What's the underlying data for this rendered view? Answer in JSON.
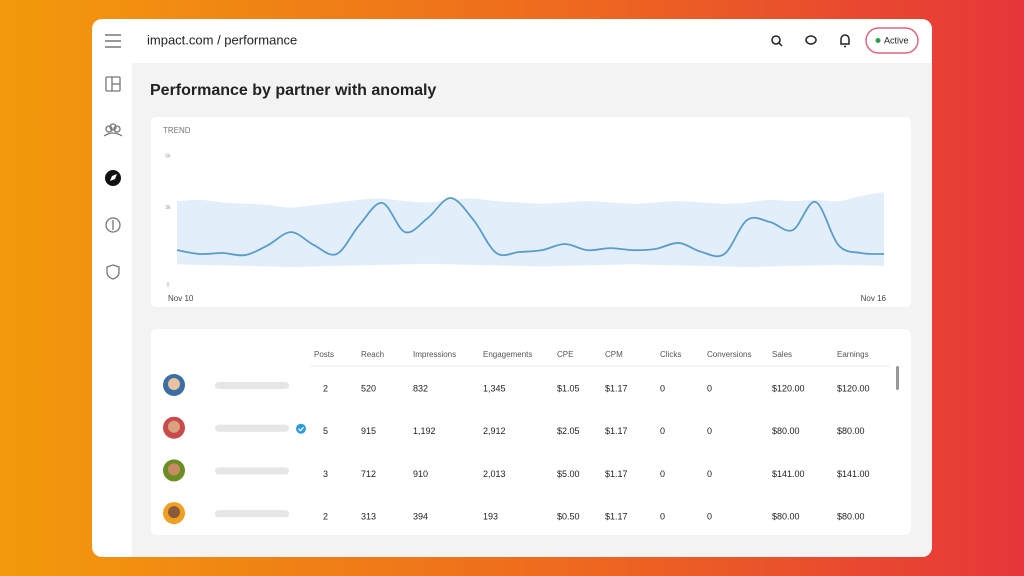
{
  "header": {
    "breadcrumb": "impact.com / performance",
    "status": "Active"
  },
  "page_title": "Performance by partner with anomaly",
  "chart_data": {
    "type": "line",
    "title": "TREND",
    "categories": [
      "Nov 10",
      null,
      null,
      null,
      null,
      null,
      null,
      null,
      null,
      null,
      null,
      null,
      null,
      null,
      null,
      null,
      null,
      null,
      null,
      null,
      null,
      null,
      null,
      null,
      null,
      null,
      null,
      null,
      null,
      null,
      null,
      "Nov 16"
    ],
    "series": [
      {
        "color": "#5b9dc9",
        "values": [
          1350,
          1200,
          1240,
          1160,
          1550,
          2050,
          1550,
          1200,
          2330,
          3180,
          2050,
          2600,
          3370,
          2520,
          1240,
          1280,
          1350,
          1590,
          1350,
          1430,
          1350,
          1400,
          1630,
          1280,
          1200,
          2520,
          2440,
          2130,
          3220,
          1550,
          1240,
          1200
        ]
      }
    ],
    "band": {
      "color": "#e2eef9",
      "upper": [
        3250,
        3300,
        3200,
        3150,
        3100,
        3000,
        3100,
        3200,
        3300,
        3350,
        3250,
        3200,
        3300,
        3350,
        3250,
        3200,
        3150,
        3200,
        3250,
        3200,
        3150,
        3200,
        3250,
        3200,
        3150,
        3200,
        3300,
        3250,
        3300,
        3250,
        3450,
        3600
      ],
      "lower": [
        800,
        780,
        760,
        740,
        720,
        700,
        720,
        740,
        760,
        780,
        800,
        820,
        800,
        780,
        760,
        740,
        720,
        740,
        760,
        780,
        800,
        780,
        760,
        740,
        720,
        700,
        720,
        740,
        760,
        780,
        760,
        740
      ]
    },
    "ylim": [
      0,
      5000
    ],
    "yticks": [
      0,
      {
        "value": 3000,
        "label": "3k"
      },
      {
        "value": 5000,
        "label": "5k"
      }
    ]
  },
  "table": {
    "columns": [
      "Posts",
      "Reach",
      "Impressions",
      "Engagements",
      "CPE",
      "CPM",
      "Clicks",
      "Conversions",
      "Sales",
      "Earnings"
    ],
    "rows": [
      {
        "verified": false,
        "cells": [
          "2",
          "520",
          "832",
          "1,345",
          "$1.05",
          "$1.17",
          "0",
          "0",
          "$120.00",
          "$120.00"
        ]
      },
      {
        "verified": true,
        "cells": [
          "5",
          "915",
          "1,192",
          "2,912",
          "$2.05",
          "$1.17",
          "0",
          "0",
          "$80.00",
          "$80.00"
        ]
      },
      {
        "verified": false,
        "cells": [
          "3",
          "712",
          "910",
          "2,013",
          "$5.00",
          "$1.17",
          "0",
          "0",
          "$141.00",
          "$141.00"
        ]
      },
      {
        "verified": false,
        "cells": [
          "2",
          "313",
          "394",
          "193",
          "$0.50",
          "$1.17",
          "0",
          "0",
          "$80.00",
          "$80.00"
        ]
      }
    ]
  }
}
